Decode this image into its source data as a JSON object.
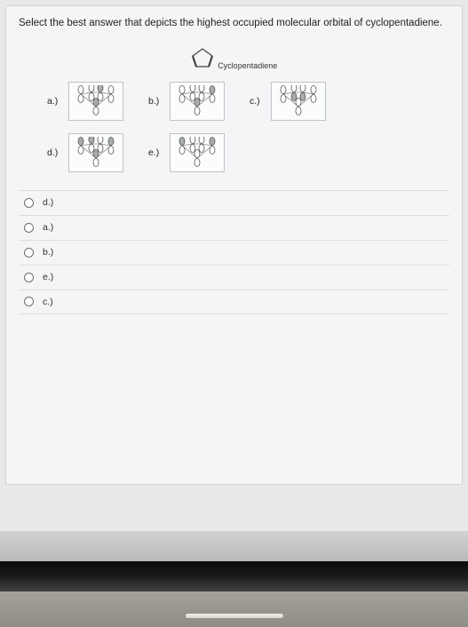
{
  "question": "Select the best answer that depicts the highest occupied molecular orbital of cyclopentadiene.",
  "molecule": {
    "name": "Cyclopentadiene"
  },
  "diagram_box": {
    "width": 62,
    "height": 44,
    "border_color": "#bfc2c5",
    "bg": "#fbfcfc",
    "lobe_top_fill": "#ffffff",
    "lobe_top_stroke": "#444",
    "lobe_bot_fill": "#ffffff",
    "lobe_bot_stroke": "#444",
    "lobe_shaded_fill": "#a9acae"
  },
  "options_grid": {
    "a": {
      "label": "a.)",
      "pattern": "UU-UU-U",
      "shaded": [
        2,
        4
      ]
    },
    "b": {
      "label": "b.)",
      "pattern": "UU-UU-U",
      "shaded": [
        3,
        4
      ]
    },
    "c": {
      "label": "c.)",
      "pattern": "UD-DU-U",
      "shaded": [
        1,
        2
      ]
    },
    "d": {
      "label": "d.)",
      "pattern": "UU-UU-U",
      "shaded": [
        0,
        1,
        3,
        4
      ]
    },
    "e": {
      "label": "e.)",
      "pattern": "UD-DU-U",
      "shaded": [
        0,
        3
      ]
    }
  },
  "choices": [
    {
      "key": "d",
      "label": "d.)"
    },
    {
      "key": "a",
      "label": "a.)"
    },
    {
      "key": "b",
      "label": "b.)"
    },
    {
      "key": "e",
      "label": "e.)"
    },
    {
      "key": "c",
      "label": "c.)"
    }
  ],
  "colors": {
    "page_bg": "#e8e9ea",
    "card_bg": "#f4f5f6",
    "card_border": "#d0d2d4",
    "divider": "#dcdee0",
    "text": "#222"
  }
}
